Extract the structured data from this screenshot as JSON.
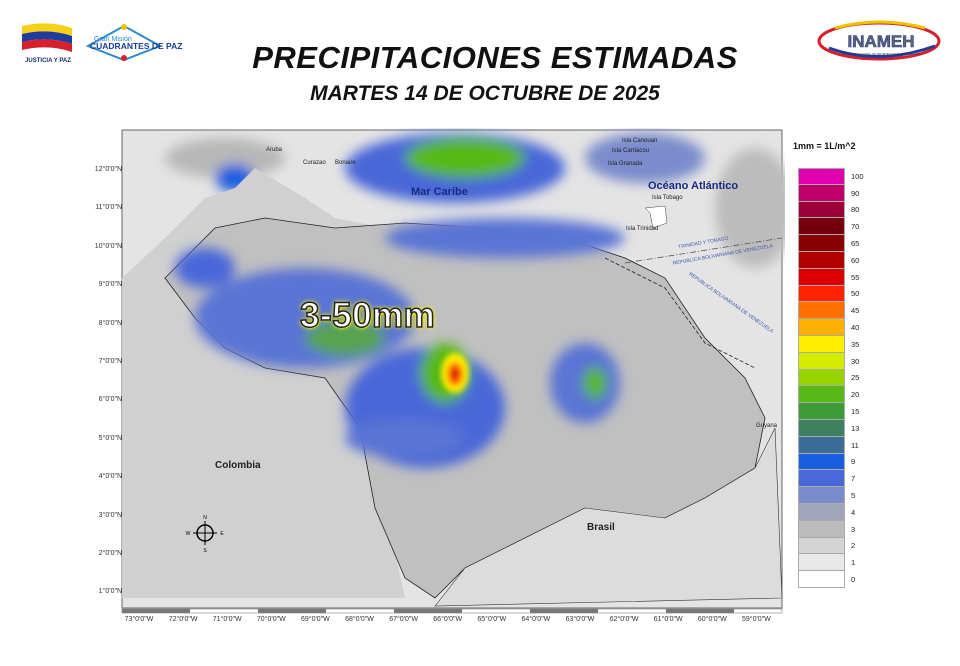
{
  "header": {
    "title": "PRECIPITACIONES ESTIMADAS",
    "subtitle": "MARTES 14 DE OCTUBRE DE 2025",
    "logo_left_text": "JUSTICIA Y PAZ",
    "logo_mid_text_1": "Gran Misión",
    "logo_mid_text_2": "CUADRANTES DE PAZ",
    "logo_right_text": "INAMEH",
    "logo_right_subtext": "INSTITUTO NACIONAL DE METEOROLOGÍA E HIDROLOGÍA"
  },
  "map": {
    "headline": "3-50mm",
    "labels": {
      "mar_caribe": "Mar Caribe",
      "oceano": "Océano Atlántico",
      "colombia": "Colombia",
      "brasil": "Brasil",
      "guyana": "Guyana",
      "aruba": "Aruba",
      "curazao": "Curazao",
      "bonaire": "Bonaire",
      "canouan": "Isla Canouan",
      "carriacou": "Isla Carriacou",
      "granada": "Isla Granada",
      "tobago": "Isla Tobago",
      "trinidad": "Isla Trinidad",
      "border1": "TRINIDAD Y TOBAGO",
      "border2": "REPUBLICA BOLIVARIANA DE VENEZUELA",
      "border3": "REPUBLICA BOLIVARIANA DE VENEZUELA"
    },
    "compass": {
      "n": "N",
      "s": "S",
      "e": "E",
      "w": "W"
    },
    "lat_ticks": [
      "12°0'0\"N",
      "11°0'0\"N",
      "10°0'0\"N",
      "9°0'0\"N",
      "8°0'0\"N",
      "7°0'0\"N",
      "6°0'0\"N",
      "5°0'0\"N",
      "4°0'0\"N",
      "3°0'0\"N",
      "2°0'0\"N",
      "1°0'0\"N"
    ],
    "lon_ticks": [
      "73°0'0\"W",
      "72°0'0\"W",
      "71°0'0\"W",
      "70°0'0\"W",
      "69°0'0\"W",
      "68°0'0\"W",
      "67°0'0\"W",
      "66°0'0\"W",
      "65°0'0\"W",
      "64°0'0\"W",
      "63°0'0\"W",
      "62°0'0\"W",
      "61°0'0\"W",
      "60°0'0\"W",
      "59°0'0\"W"
    ]
  },
  "legend": {
    "unit": "1mm = 1L/m^2",
    "items": [
      {
        "value": "100",
        "color": "#e000b0"
      },
      {
        "value": "90",
        "color": "#c0006a"
      },
      {
        "value": "80",
        "color": "#9c0038"
      },
      {
        "value": "70",
        "color": "#74000e"
      },
      {
        "value": "65",
        "color": "#880000"
      },
      {
        "value": "60",
        "color": "#b00000"
      },
      {
        "value": "55",
        "color": "#dc0000"
      },
      {
        "value": "50",
        "color": "#ff2200"
      },
      {
        "value": "45",
        "color": "#ff7000"
      },
      {
        "value": "40",
        "color": "#ffb000"
      },
      {
        "value": "35",
        "color": "#ffee00"
      },
      {
        "value": "30",
        "color": "#d4ec00"
      },
      {
        "value": "25",
        "color": "#98d400"
      },
      {
        "value": "20",
        "color": "#58b818"
      },
      {
        "value": "15",
        "color": "#3c9c38"
      },
      {
        "value": "13",
        "color": "#3e8060"
      },
      {
        "value": "11",
        "color": "#3c6c98"
      },
      {
        "value": "9",
        "color": "#1a5ee0"
      },
      {
        "value": "7",
        "color": "#4a68d8"
      },
      {
        "value": "5",
        "color": "#7a8ccc"
      },
      {
        "value": "4",
        "color": "#a2a6bc"
      },
      {
        "value": "3",
        "color": "#bcbcbc"
      },
      {
        "value": "2",
        "color": "#d4d4d4"
      },
      {
        "value": "1",
        "color": "#e8e8e8"
      },
      {
        "value": "0",
        "color": "#ffffff"
      }
    ]
  }
}
